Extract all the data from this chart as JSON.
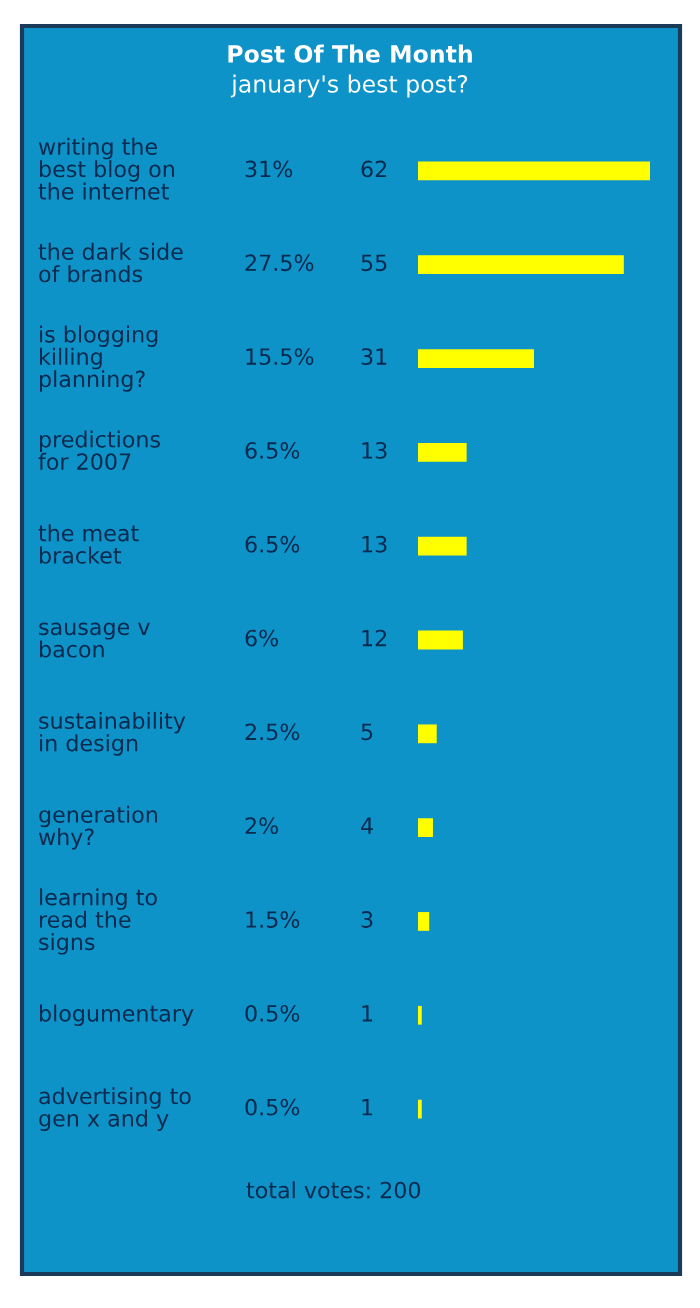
{
  "chart_data": {
    "type": "bar",
    "orientation": "horizontal",
    "title": "Post Of The Month",
    "subtitle": "january's best post?",
    "categories": [
      "writing the\nbest blog on\nthe internet",
      "the dark side\nof brands",
      "is blogging\nkilling\nplanning?",
      "predictions\nfor 2007",
      "the meat\nbracket",
      "sausage v\nbacon",
      "sustainability\nin design",
      "generation\nwhy?",
      "learning to\nread the\nsigns",
      "blogumentary",
      "advertising to\ngen x and y"
    ],
    "values": [
      62,
      55,
      31,
      13,
      13,
      12,
      5,
      4,
      3,
      1,
      1
    ],
    "data_labels": true,
    "color": "#ffff00",
    "annotations": [
      "31%",
      "27.5%",
      "15.5%",
      "6.5%",
      "6.5%",
      "6%",
      "2.5%",
      "2%",
      "1.5%",
      "0.5%",
      "0.5%",
      "total votes: 200"
    ]
  }
}
